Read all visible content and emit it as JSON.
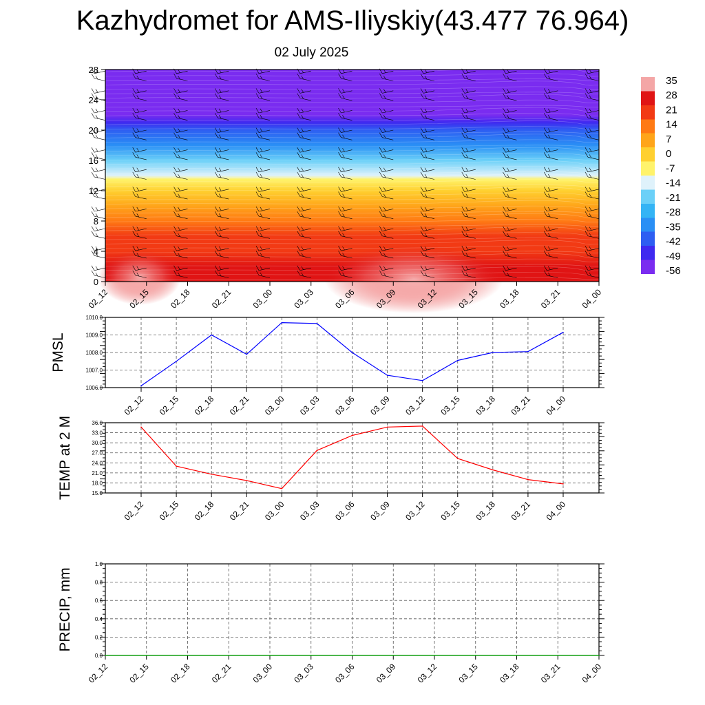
{
  "header": {
    "title": "Kazhydromet for AMS-Iliyskiy(43.477 76.964)",
    "subtitle": "02 July 2025"
  },
  "chart_data": [
    {
      "type": "heatmap",
      "title": "",
      "xlabel": "",
      "ylabel": "",
      "x_ticks": [
        "02_12",
        "02_15",
        "02_18",
        "02_21",
        "03_00",
        "03_03",
        "03_06",
        "03_09",
        "03_12",
        "03_15",
        "03_18",
        "03_21",
        "04_00"
      ],
      "y_ticks": [
        0,
        4,
        8,
        12,
        16,
        20,
        24,
        28
      ],
      "ylim": [
        0,
        28
      ],
      "colorbar": {
        "labels": [
          "35",
          "28",
          "21",
          "14",
          "7",
          "0",
          "-7",
          "-14",
          "-21",
          "-28",
          "-35",
          "-42",
          "-49",
          "-56"
        ],
        "values": [
          35,
          28,
          21,
          14,
          7,
          0,
          -7,
          -14,
          -21,
          -28,
          -35,
          -42,
          -49,
          -56
        ],
        "colors": {
          "-56": "#7a2cf0",
          "-49": "#3f2af0",
          "-42": "#2e5ef2",
          "-35": "#2a8ff5",
          "-28": "#34b4f5",
          "-21": "#6bd0f8",
          "-14": "#dff2fb",
          "-7": "#fff36b",
          "0": "#ffd030",
          "7": "#ffa51a",
          "14": "#ff7a14",
          "21": "#f23a14",
          "28": "#e01414",
          "35": "#f4a6a6"
        }
      },
      "profile": {
        "levels": [
          0,
          2,
          4,
          6,
          8,
          10,
          12,
          13.5,
          14,
          16,
          18,
          20,
          21,
          22,
          24,
          28
        ],
        "temps": [
          30,
          27,
          24,
          20,
          14,
          8,
          1,
          -6,
          -13,
          -24,
          -34,
          -44,
          -52,
          -56,
          -57,
          -57
        ]
      },
      "wind_barbs": "wind barbs at each x_tick and height level",
      "legend": "right"
    },
    {
      "type": "line",
      "title": "",
      "ylabel": "PMSL",
      "categories": [
        "02_12",
        "02_15",
        "02_18",
        "02_21",
        "03_00",
        "03_03",
        "03_06",
        "03_09",
        "03_12",
        "03_15",
        "03_18",
        "03_21",
        "04_00"
      ],
      "values": [
        1006.1,
        1007.5,
        1009.0,
        1007.9,
        1009.7,
        1009.65,
        1008.0,
        1006.7,
        1006.4,
        1007.55,
        1008.0,
        1008.05,
        1009.15
      ],
      "y_ticks": [
        "1006.0",
        "1007.0",
        "1008.0",
        "1009.0",
        "1010.0"
      ],
      "ylim": [
        1006.0,
        1010.0
      ],
      "color": "#0000ff",
      "grid": true
    },
    {
      "type": "line",
      "title": "",
      "ylabel": "TEMP at 2 M",
      "categories": [
        "02_12",
        "02_15",
        "02_18",
        "02_21",
        "03_00",
        "03_03",
        "03_06",
        "03_09",
        "03_12",
        "03_15",
        "03_18",
        "03_21",
        "04_00"
      ],
      "values": [
        34.7,
        23.0,
        20.6,
        18.7,
        16.3,
        27.7,
        32.2,
        34.7,
        35.0,
        25.3,
        21.9,
        19.0,
        17.7
      ],
      "y_ticks": [
        "15.0",
        "18.0",
        "21.0",
        "24.0",
        "27.0",
        "30.0",
        "33.0",
        "36.0"
      ],
      "ylim": [
        15.0,
        36.0
      ],
      "color": "#ff0000",
      "grid": true
    },
    {
      "type": "line",
      "title": "",
      "ylabel": "PRECIP, mm",
      "categories": [
        "02_12",
        "02_15",
        "02_18",
        "02_21",
        "03_00",
        "03_03",
        "03_06",
        "03_09",
        "03_12",
        "03_15",
        "03_18",
        "03_21",
        "04_00"
      ],
      "values": [
        0,
        0,
        0,
        0,
        0,
        0,
        0,
        0,
        0,
        0,
        0,
        0,
        0
      ],
      "y_ticks": [
        "0.0",
        "0.2",
        "0.4",
        "0.6",
        "0.8",
        "1.0"
      ],
      "ylim": [
        0.0,
        1.0
      ],
      "color": "#00aa00",
      "grid": true
    }
  ]
}
